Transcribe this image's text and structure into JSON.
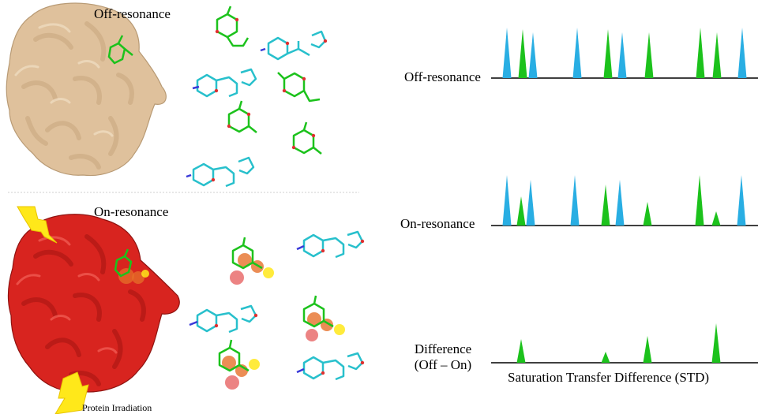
{
  "left_panel": {
    "top_title": "Off-resonance",
    "bottom_title": "On-resonance",
    "irradiation_label": "Protein Irradiation"
  },
  "right_panel": {
    "spectra": [
      {
        "label": "Off-resonance"
      },
      {
        "label": "On-resonance"
      },
      {
        "label_line1": "Difference",
        "label_line2": "(Off – On)"
      }
    ],
    "caption": "Saturation Transfer Difference (STD)"
  },
  "colors": {
    "blue_peak": "#29aee3",
    "green_peak": "#1cc21c",
    "protein_off": "#dfc19c",
    "protein_on": "#d8241f",
    "lightning": "#ffe81a",
    "saturation_glow": "#e6702a"
  },
  "chart_data": [
    {
      "type": "line",
      "name": "off-resonance spectrum",
      "peaks": [
        {
          "pos": 642,
          "h": 64,
          "color": "blue"
        },
        {
          "pos": 662,
          "h": 62,
          "color": "green"
        },
        {
          "pos": 675,
          "h": 58,
          "color": "blue"
        },
        {
          "pos": 731,
          "h": 64,
          "color": "blue"
        },
        {
          "pos": 770,
          "h": 62,
          "color": "green"
        },
        {
          "pos": 788,
          "h": 58,
          "color": "blue"
        },
        {
          "pos": 822,
          "h": 58,
          "color": "green"
        },
        {
          "pos": 887,
          "h": 64,
          "color": "green"
        },
        {
          "pos": 908,
          "h": 58,
          "color": "green"
        },
        {
          "pos": 940,
          "h": 64,
          "color": "blue"
        }
      ]
    },
    {
      "type": "line",
      "name": "on-resonance spectrum",
      "peaks": [
        {
          "pos": 642,
          "h": 64,
          "color": "blue"
        },
        {
          "pos": 660,
          "h": 37,
          "color": "green"
        },
        {
          "pos": 672,
          "h": 58,
          "color": "blue"
        },
        {
          "pos": 728,
          "h": 64,
          "color": "blue"
        },
        {
          "pos": 767,
          "h": 52,
          "color": "green"
        },
        {
          "pos": 785,
          "h": 58,
          "color": "blue"
        },
        {
          "pos": 820,
          "h": 30,
          "color": "green"
        },
        {
          "pos": 886,
          "h": 64,
          "color": "green"
        },
        {
          "pos": 907,
          "h": 18,
          "color": "green"
        },
        {
          "pos": 939,
          "h": 64,
          "color": "blue"
        }
      ]
    },
    {
      "type": "line",
      "name": "difference spectrum",
      "peaks": [
        {
          "pos": 660,
          "h": 30,
          "color": "green"
        },
        {
          "pos": 767,
          "h": 14,
          "color": "green"
        },
        {
          "pos": 820,
          "h": 34,
          "color": "green"
        },
        {
          "pos": 907,
          "h": 50,
          "color": "green"
        }
      ]
    }
  ]
}
